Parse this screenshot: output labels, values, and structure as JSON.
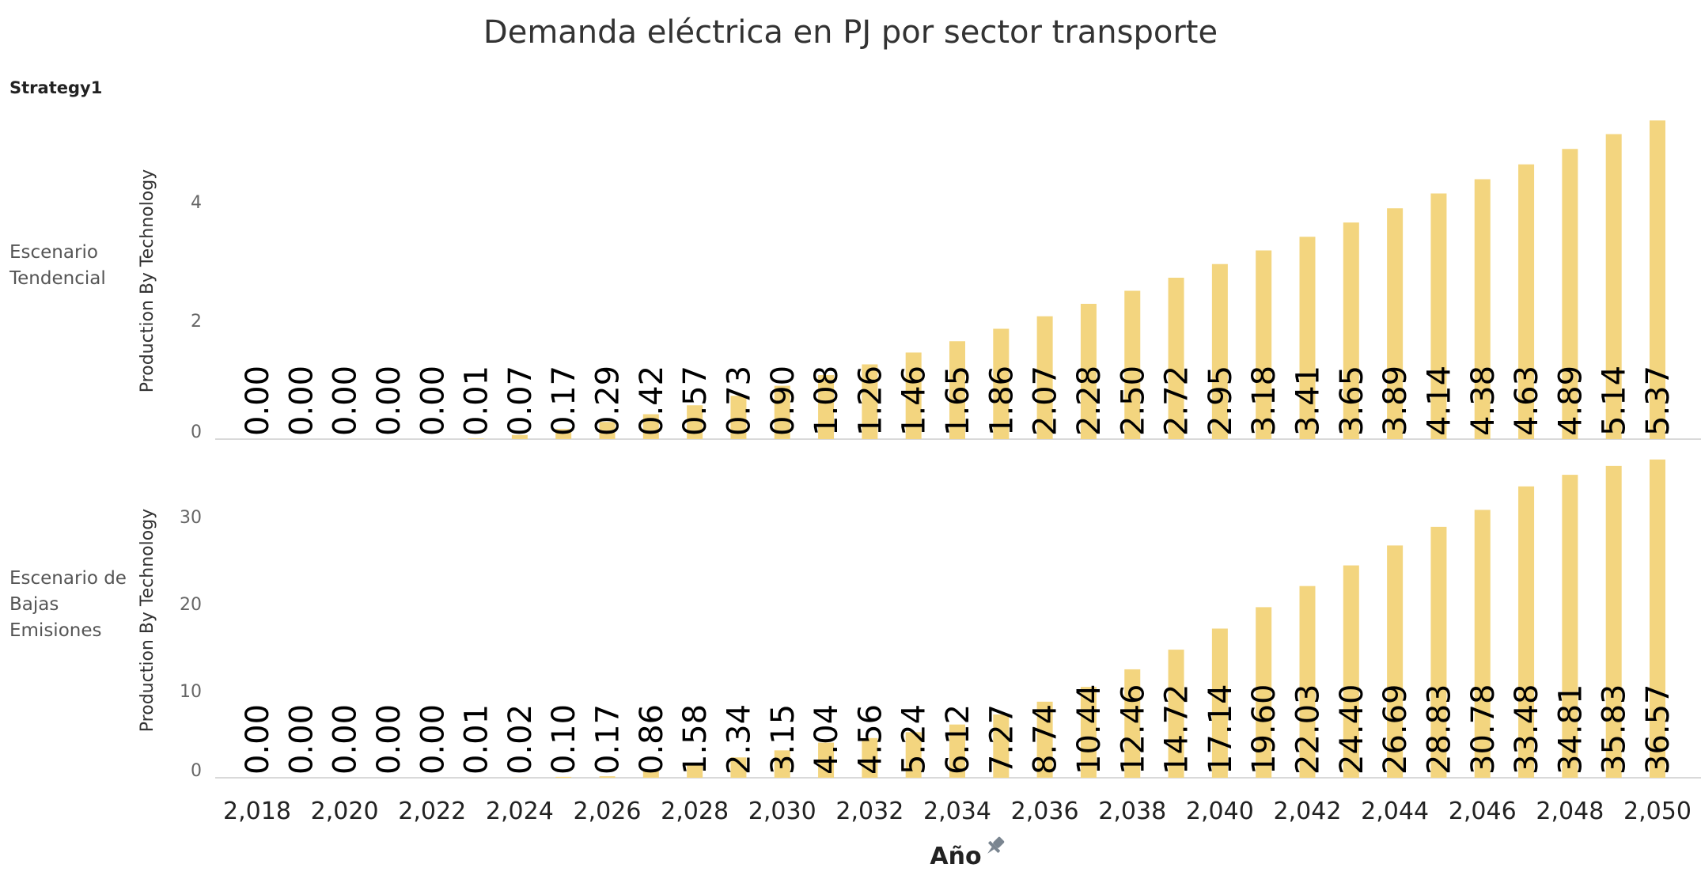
{
  "title": "Demanda eléctrica en PJ por sector transporte",
  "strategy_label": "Strategy1",
  "pin_icon": "pin-icon",
  "colors": {
    "bar": "#F3D57F",
    "axis": "#d9d9d9"
  },
  "chart_data": {
    "type": "bar",
    "title": "Demanda eléctrica en PJ por sector transporte",
    "xlabel": "Año",
    "x": [
      2018,
      2019,
      2020,
      2021,
      2022,
      2023,
      2024,
      2025,
      2026,
      2027,
      2028,
      2029,
      2030,
      2031,
      2032,
      2033,
      2034,
      2035,
      2036,
      2037,
      2038,
      2039,
      2040,
      2041,
      2042,
      2043,
      2044,
      2045,
      2046,
      2047,
      2048,
      2049,
      2050
    ],
    "x_tick_labels": [
      "2,018",
      "2,020",
      "2,022",
      "2,024",
      "2,026",
      "2,028",
      "2,030",
      "2,032",
      "2,034",
      "2,036",
      "2,038",
      "2,040",
      "2,042",
      "2,044",
      "2,046",
      "2,048",
      "2,050"
    ],
    "grid": false,
    "panels": [
      {
        "row_label": [
          "Escenario",
          "Tendencial"
        ],
        "ylabel": "Production By Technology",
        "yticks": [
          0,
          2,
          4
        ],
        "ylim": [
          0,
          5.6
        ],
        "values": [
          0.0,
          0.0,
          0.0,
          0.0,
          0.0,
          0.01,
          0.07,
          0.17,
          0.29,
          0.42,
          0.57,
          0.73,
          0.9,
          1.08,
          1.26,
          1.46,
          1.65,
          1.86,
          2.07,
          2.28,
          2.5,
          2.72,
          2.95,
          3.18,
          3.41,
          3.65,
          3.89,
          4.14,
          4.38,
          4.63,
          4.89,
          5.14,
          5.37
        ],
        "data_labels": [
          "0.00",
          "0.00",
          "0.00",
          "0.00",
          "0.00",
          "0.01",
          "0.07",
          "0.17",
          "0.29",
          "0.42",
          "0.57",
          "0.73",
          "0.90",
          "1.08",
          "1.26",
          "1.46",
          "1.65",
          "1.86",
          "2.07",
          "2.28",
          "2.50",
          "2.72",
          "2.95",
          "3.18",
          "3.41",
          "3.65",
          "3.89",
          "4.14",
          "4.38",
          "4.63",
          "4.89",
          "5.14",
          "5.37"
        ]
      },
      {
        "row_label": [
          "Escenario de",
          "Bajas",
          "Emisiones"
        ],
        "ylabel": "Production By Technology",
        "yticks": [
          0,
          10,
          20,
          30
        ],
        "ylim": [
          0,
          38
        ],
        "values": [
          0.0,
          0.0,
          0.0,
          0.0,
          0.0,
          0.01,
          0.02,
          0.1,
          0.17,
          0.86,
          1.58,
          2.34,
          3.15,
          4.04,
          4.56,
          5.24,
          6.12,
          7.27,
          8.74,
          10.44,
          12.46,
          14.72,
          17.14,
          19.6,
          22.03,
          24.4,
          26.69,
          28.83,
          30.78,
          33.48,
          34.81,
          35.83,
          36.57
        ],
        "data_labels": [
          "0.00",
          "0.00",
          "0.00",
          "0.00",
          "0.00",
          "0.01",
          "0.02",
          "0.10",
          "0.17",
          "0.86",
          "1.58",
          "2.34",
          "3.15",
          "4.04",
          "4.56",
          "5.24",
          "6.12",
          "7.27",
          "8.74",
          "10.44",
          "12.46",
          "14.72",
          "17.14",
          "19.60",
          "22.03",
          "24.40",
          "26.69",
          "28.83",
          "30.78",
          "33.48",
          "34.81",
          "35.83",
          "36.57"
        ]
      }
    ]
  }
}
